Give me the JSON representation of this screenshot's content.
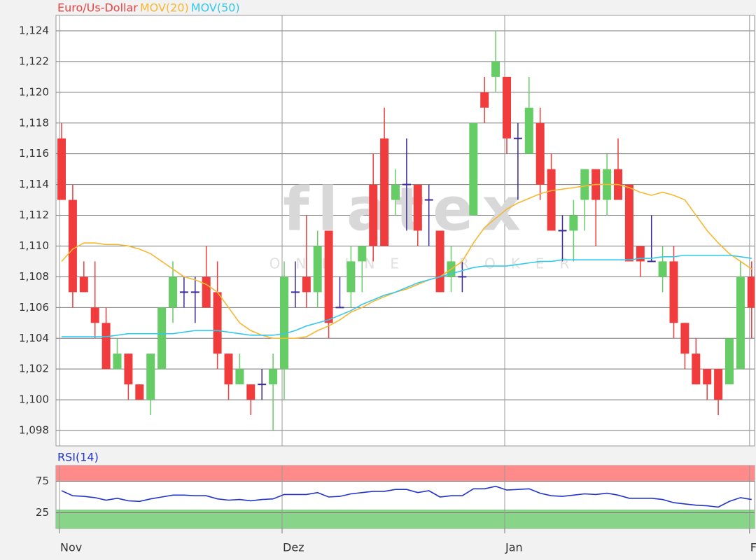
{
  "chart_data": [
    {
      "type": "candlestick",
      "watermark": "flatex",
      "watermark_sub": "ONLINE BROKER",
      "categories": [
        "Nov",
        null,
        null,
        null,
        null,
        null,
        null,
        null,
        null,
        null,
        null,
        null,
        null,
        null,
        null,
        null,
        null,
        null,
        null,
        null,
        "Dez",
        null,
        null,
        null,
        null,
        null,
        null,
        null,
        null,
        null,
        null,
        null,
        null,
        null,
        null,
        null,
        null,
        null,
        null,
        null,
        "Jan",
        null,
        null,
        null,
        null,
        null,
        null,
        null,
        null,
        null,
        null,
        null,
        null,
        null,
        null,
        null,
        null,
        null,
        null,
        null,
        null,
        null,
        "F"
      ],
      "series": [
        {
          "name": "Euro/Us-Dollar",
          "color": "#f04040",
          "up_color": "#66cc66",
          "down_color": "#f03c3c",
          "doji_color": "#3a2a9a",
          "open": [
            1.117,
            1.113,
            1.108,
            1.106,
            1.105,
            1.102,
            1.103,
            1.101,
            1.1,
            1.102,
            1.106,
            1.107,
            1.107,
            1.108,
            1.107,
            1.103,
            1.101,
            1.101,
            1.101,
            1.101,
            1.102,
            1.107,
            1.108,
            1.107,
            1.111,
            1.106,
            1.107,
            1.109,
            1.114,
            1.117,
            1.113,
            1.114,
            1.114,
            1.113,
            1.111,
            1.108,
            1.108,
            1.112,
            1.12,
            1.121,
            1.121,
            1.117,
            1.116,
            1.118,
            1.115,
            1.111,
            1.111,
            1.113,
            1.115,
            1.113,
            1.115,
            1.114,
            1.11,
            1.109,
            1.108,
            1.109,
            1.105,
            1.103,
            1.102,
            1.102,
            1.101,
            1.102,
            1.108
          ],
          "high": [
            1.118,
            1.114,
            1.109,
            1.109,
            1.106,
            1.104,
            1.103,
            1.101,
            1.103,
            1.106,
            1.109,
            1.108,
            1.108,
            1.11,
            1.109,
            1.103,
            1.103,
            1.101,
            1.102,
            1.103,
            1.109,
            1.109,
            1.112,
            1.111,
            1.111,
            1.108,
            1.11,
            1.11,
            1.116,
            1.119,
            1.115,
            1.117,
            1.114,
            1.114,
            1.111,
            1.11,
            1.109,
            1.118,
            1.121,
            1.124,
            1.121,
            1.118,
            1.121,
            1.119,
            1.116,
            1.112,
            1.113,
            1.115,
            1.115,
            1.116,
            1.117,
            1.114,
            1.11,
            1.112,
            1.11,
            1.11,
            1.105,
            1.104,
            1.102,
            1.102,
            1.104,
            1.109,
            1.109
          ],
          "low": [
            1.113,
            1.106,
            1.107,
            1.104,
            1.102,
            1.102,
            1.1,
            1.1,
            1.099,
            1.102,
            1.105,
            1.106,
            1.105,
            1.106,
            1.102,
            1.1,
            1.101,
            1.099,
            1.1,
            1.098,
            1.1,
            1.106,
            1.106,
            1.106,
            1.104,
            1.106,
            1.106,
            1.107,
            1.109,
            1.11,
            1.112,
            1.111,
            1.11,
            1.11,
            1.107,
            1.107,
            1.107,
            1.112,
            1.118,
            1.12,
            1.116,
            1.113,
            1.116,
            1.113,
            1.111,
            1.109,
            1.109,
            1.111,
            1.11,
            1.112,
            1.113,
            1.109,
            1.108,
            1.109,
            1.107,
            1.104,
            1.102,
            1.101,
            1.1,
            1.099,
            1.101,
            1.102,
            1.104
          ],
          "close": [
            1.113,
            1.107,
            1.107,
            1.105,
            1.102,
            1.103,
            1.101,
            1.1,
            1.103,
            1.106,
            1.108,
            1.107,
            1.107,
            1.106,
            1.103,
            1.101,
            1.102,
            1.1,
            1.101,
            1.102,
            1.108,
            1.107,
            1.107,
            1.11,
            1.105,
            1.106,
            1.109,
            1.11,
            1.11,
            1.11,
            1.114,
            1.114,
            1.111,
            1.113,
            1.107,
            1.109,
            1.108,
            1.118,
            1.119,
            1.122,
            1.117,
            1.117,
            1.119,
            1.114,
            1.111,
            1.111,
            1.112,
            1.115,
            1.113,
            1.115,
            1.113,
            1.109,
            1.109,
            1.109,
            1.109,
            1.105,
            1.103,
            1.101,
            1.101,
            1.1,
            1.104,
            1.108,
            1.106
          ]
        },
        {
          "name": "MOV(20)",
          "type": "line",
          "color": "#f7b731",
          "values": [
            1.109,
            1.1098,
            1.1102,
            1.1102,
            1.1101,
            1.1101,
            1.11,
            1.1098,
            1.1095,
            1.109,
            1.1085,
            1.108,
            1.1078,
            1.1075,
            1.107,
            1.106,
            1.105,
            1.1045,
            1.1042,
            1.104,
            1.104,
            1.104,
            1.1041,
            1.1045,
            1.1048,
            1.1052,
            1.1057,
            1.106,
            1.1064,
            1.1067,
            1.107,
            1.1072,
            1.1075,
            1.1078,
            1.108,
            1.1085,
            1.109,
            1.1102,
            1.1112,
            1.1118,
            1.1124,
            1.1128,
            1.1131,
            1.1134,
            1.1136,
            1.1137,
            1.1138,
            1.1139,
            1.114,
            1.114,
            1.114,
            1.1138,
            1.1135,
            1.1133,
            1.1135,
            1.1133,
            1.113,
            1.112,
            1.111,
            1.1102,
            1.1095,
            1.109,
            1.1085
          ]
        },
        {
          "name": "MOV(50)",
          "type": "line",
          "color": "#33c8ec",
          "values": [
            1.1041,
            1.1041,
            1.1041,
            1.1041,
            1.1041,
            1.1042,
            1.1043,
            1.1043,
            1.1043,
            1.1043,
            1.1043,
            1.1044,
            1.1045,
            1.1045,
            1.1045,
            1.1044,
            1.1043,
            1.1042,
            1.1042,
            1.1042,
            1.1043,
            1.1045,
            1.1048,
            1.105,
            1.1052,
            1.1055,
            1.1058,
            1.1062,
            1.1065,
            1.1068,
            1.107,
            1.1073,
            1.1076,
            1.1078,
            1.108,
            1.1082,
            1.1084,
            1.1086,
            1.1087,
            1.1087,
            1.1087,
            1.1088,
            1.1089,
            1.109,
            1.109,
            1.1091,
            1.1091,
            1.1091,
            1.1091,
            1.1091,
            1.1091,
            1.1091,
            1.1092,
            1.1092,
            1.1093,
            1.1093,
            1.1094,
            1.1094,
            1.1094,
            1.1094,
            1.1094,
            1.1093,
            1.1092
          ]
        }
      ],
      "ylim": [
        1.097,
        1.125
      ],
      "yticks": [
        {
          "value": 1.098,
          "label": "1,098"
        },
        {
          "value": 1.1,
          "label": "1,100"
        },
        {
          "value": 1.102,
          "label": "1,102"
        },
        {
          "value": 1.104,
          "label": "1,104"
        },
        {
          "value": 1.106,
          "label": "1,106"
        },
        {
          "value": 1.108,
          "label": "1,108"
        },
        {
          "value": 1.11,
          "label": "1,110"
        },
        {
          "value": 1.112,
          "label": "1,112"
        },
        {
          "value": 1.114,
          "label": "1,114"
        },
        {
          "value": 1.116,
          "label": "1,116"
        },
        {
          "value": 1.118,
          "label": "1,118"
        },
        {
          "value": 1.12,
          "label": "1,120"
        },
        {
          "value": 1.122,
          "label": "1,122"
        },
        {
          "value": 1.124,
          "label": "1,124"
        }
      ],
      "grid": true
    },
    {
      "type": "line",
      "series": [
        {
          "name": "RSI(14)",
          "color": "#2233cc",
          "values": [
            60,
            52,
            51,
            49,
            45,
            48,
            44,
            43,
            47,
            50,
            53,
            53,
            52,
            52,
            47,
            45,
            46,
            44,
            46,
            47,
            54,
            54,
            54,
            57,
            50,
            51,
            55,
            57,
            59,
            59,
            62,
            62,
            57,
            60,
            50,
            52,
            52,
            63,
            63,
            67,
            61,
            62,
            63,
            56,
            52,
            51,
            53,
            55,
            54,
            56,
            53,
            48,
            48,
            48,
            46,
            41,
            39,
            37,
            36,
            34,
            43,
            49,
            46
          ]
        }
      ],
      "ylim": [
        0,
        100
      ],
      "yticks": [
        25,
        75
      ],
      "bands": [
        {
          "from": 75,
          "to": 100,
          "color": "#ff8a8a"
        },
        {
          "from": 0,
          "to": 30,
          "color": "#88d488"
        }
      ],
      "grid": true
    }
  ]
}
